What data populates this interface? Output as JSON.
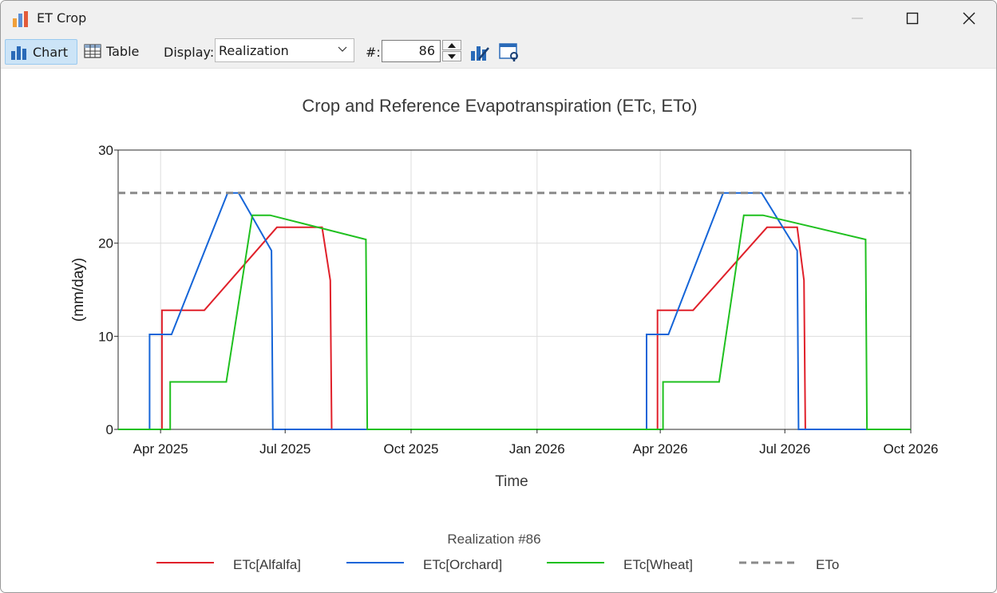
{
  "window": {
    "title": "ET Crop"
  },
  "toolbar": {
    "chart_label": "Chart",
    "table_label": "Table",
    "display_label": "Display:",
    "display_value": "Realization",
    "number_label": "#:",
    "number_value": "86"
  },
  "chart_data": {
    "type": "line",
    "title": "Crop and Reference Evapotranspiration (ETc, ETo)",
    "xlabel": "Time",
    "ylabel": "(mm/day)",
    "legend_title": "Realization #86",
    "legend_position": "bottom",
    "grid": true,
    "xlim": [
      "2025-03-01",
      "2026-10-01"
    ],
    "ylim": [
      0,
      30
    ],
    "xticks": [
      {
        "date": "2025-04-01",
        "label": "Apr 2025"
      },
      {
        "date": "2025-07-01",
        "label": "Jul 2025"
      },
      {
        "date": "2025-10-01",
        "label": "Oct 2025"
      },
      {
        "date": "2026-01-01",
        "label": "Jan 2026"
      },
      {
        "date": "2026-04-01",
        "label": "Apr 2026"
      },
      {
        "date": "2026-07-01",
        "label": "Jul 2026"
      },
      {
        "date": "2026-10-01",
        "label": "Oct 2026"
      }
    ],
    "yticks": [
      0,
      10,
      20,
      30
    ],
    "series": [
      {
        "name": "ETc[Alfalfa]",
        "color": "#e0202a",
        "dash": false,
        "points": [
          [
            "2025-03-01",
            0
          ],
          [
            "2025-04-02",
            0
          ],
          [
            "2025-04-02",
            12.8
          ],
          [
            "2025-05-03",
            12.8
          ],
          [
            "2025-06-25",
            21.7
          ],
          [
            "2025-07-28",
            21.7
          ],
          [
            "2025-08-03",
            16
          ],
          [
            "2025-08-04",
            0
          ],
          [
            "2026-03-30",
            0
          ],
          [
            "2026-03-30",
            12.8
          ],
          [
            "2026-04-25",
            12.8
          ],
          [
            "2026-06-18",
            21.7
          ],
          [
            "2026-07-10",
            21.7
          ],
          [
            "2026-07-15",
            16
          ],
          [
            "2026-07-16",
            0
          ],
          [
            "2026-10-01",
            0
          ]
        ]
      },
      {
        "name": "ETc[Orchard]",
        "color": "#1565d8",
        "dash": false,
        "points": [
          [
            "2025-03-01",
            0
          ],
          [
            "2025-03-24",
            0
          ],
          [
            "2025-03-24",
            10.2
          ],
          [
            "2025-04-09",
            10.2
          ],
          [
            "2025-05-20",
            25.4
          ],
          [
            "2025-05-28",
            25.4
          ],
          [
            "2025-06-21",
            19.2
          ],
          [
            "2025-06-22",
            0
          ],
          [
            "2026-03-22",
            0
          ],
          [
            "2026-03-22",
            10.2
          ],
          [
            "2026-04-07",
            10.2
          ],
          [
            "2026-05-17",
            25.4
          ],
          [
            "2026-06-14",
            25.4
          ],
          [
            "2026-07-10",
            19.2
          ],
          [
            "2026-07-11",
            0
          ],
          [
            "2026-10-01",
            0
          ]
        ]
      },
      {
        "name": "ETc[Wheat]",
        "color": "#1fc01f",
        "dash": false,
        "points": [
          [
            "2025-03-01",
            0
          ],
          [
            "2025-04-08",
            0
          ],
          [
            "2025-04-08",
            5.1
          ],
          [
            "2025-05-19",
            5.1
          ],
          [
            "2025-06-07",
            23
          ],
          [
            "2025-06-20",
            23
          ],
          [
            "2025-08-29",
            20.4
          ],
          [
            "2025-08-30",
            0
          ],
          [
            "2026-04-03",
            0
          ],
          [
            "2026-04-03",
            5.1
          ],
          [
            "2026-05-14",
            5.1
          ],
          [
            "2026-06-01",
            23
          ],
          [
            "2026-06-15",
            23
          ],
          [
            "2026-08-29",
            20.4
          ],
          [
            "2026-08-30",
            0
          ],
          [
            "2026-10-01",
            0
          ]
        ]
      },
      {
        "name": "ETo",
        "color": "#8a8a8a",
        "dash": true,
        "points": [
          [
            "2025-03-01",
            25.4
          ],
          [
            "2026-10-01",
            25.4
          ]
        ]
      }
    ]
  }
}
